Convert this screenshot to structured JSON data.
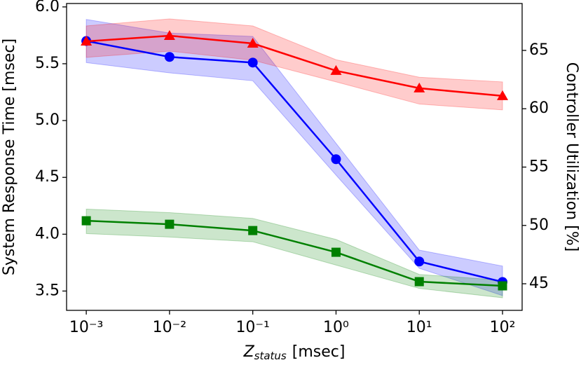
{
  "chart_data": {
    "type": "line",
    "xlabel": {
      "symbol": "Z",
      "subscript": "status",
      "unit": "[msec]"
    },
    "ylabel": "System Response Time [msec]",
    "y2label": "Controller Utilization [%]",
    "x": [
      0.001,
      0.01,
      0.1,
      1,
      10,
      100
    ],
    "xscale": "log",
    "xlim": [
      0.00058,
      172
    ],
    "xticks": [
      {
        "value": 0.001,
        "label": "10⁻³"
      },
      {
        "value": 0.01,
        "label": "10⁻²"
      },
      {
        "value": 0.1,
        "label": "10⁻¹"
      },
      {
        "value": 1,
        "label": "10⁰"
      },
      {
        "value": 10,
        "label": "10¹"
      },
      {
        "value": 100,
        "label": "10²"
      }
    ],
    "ylim": [
      3.33,
      6.03
    ],
    "yticks": [
      3.5,
      {
        "value": 4,
        "label": "4.0"
      },
      4.5,
      {
        "value": 5,
        "label": "5.0"
      },
      5.5,
      {
        "value": 6,
        "label": "6.0"
      }
    ],
    "y2lim": [
      42.72,
      69.02
    ],
    "y2ticks": [
      45,
      50,
      55,
      60,
      65
    ],
    "series": [
      {
        "color": "#0000ff",
        "marker": "circle",
        "axis": "y",
        "values": [
          5.7,
          5.56,
          5.51,
          4.66,
          3.76,
          3.58
        ],
        "upper": [
          5.89,
          5.77,
          5.74,
          4.8,
          3.86,
          3.72
        ],
        "lower": [
          5.51,
          5.42,
          5.35,
          4.52,
          3.7,
          3.46
        ]
      },
      {
        "color": "#ff0000",
        "marker": "triangle",
        "axis": "y2",
        "values": [
          65.78,
          66.26,
          65.6,
          63.26,
          61.76,
          61.1
        ],
        "upper": [
          67.1,
          67.7,
          67.1,
          64.2,
          62.7,
          62.3
        ],
        "lower": [
          64.4,
          64.94,
          64.16,
          62.3,
          60.4,
          59.9
        ]
      },
      {
        "color": "#008000",
        "marker": "square",
        "axis": "y2",
        "values": [
          50.4,
          50.1,
          49.56,
          47.7,
          45.18,
          44.82
        ],
        "upper": [
          51.4,
          51.1,
          50.6,
          48.8,
          45.8,
          45.3
        ],
        "lower": [
          49.3,
          49.0,
          48.6,
          46.6,
          44.6,
          43.8
        ]
      }
    ]
  }
}
